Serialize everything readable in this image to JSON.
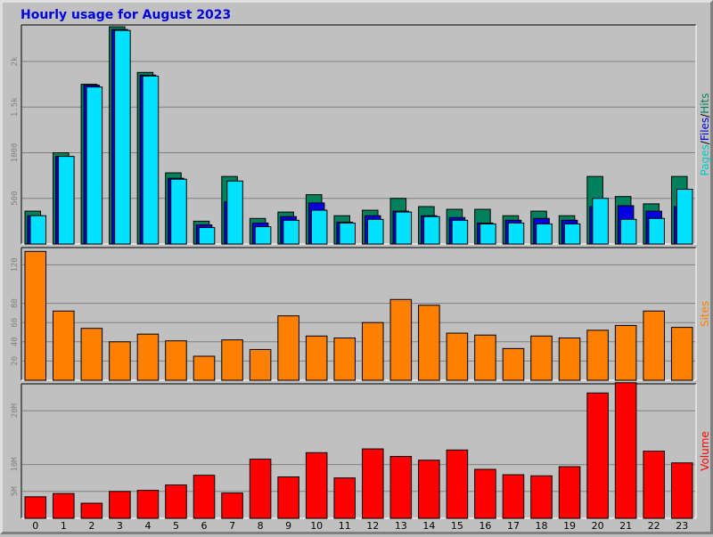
{
  "chart_data": {
    "title": "Hourly usage for August 2023",
    "type": "bar",
    "x": [
      "0",
      "1",
      "2",
      "3",
      "4",
      "5",
      "6",
      "7",
      "8",
      "9",
      "10",
      "11",
      "12",
      "13",
      "14",
      "15",
      "16",
      "17",
      "18",
      "19",
      "20",
      "21",
      "22",
      "23"
    ],
    "panels": [
      {
        "id": "hits",
        "ylim": [
          0,
          2400
        ],
        "yticks": [
          500,
          1000,
          1500,
          2000
        ],
        "ytick_labels": [
          "500",
          "1000",
          "1.5k",
          "2k"
        ],
        "legend": [
          {
            "label": "Pages",
            "color": "#00c8c8"
          },
          {
            "label": "/",
            "color": "#000000"
          },
          {
            "label": "Files",
            "color": "#0000e0"
          },
          {
            "label": "/",
            "color": "#000000"
          },
          {
            "label": "Hits",
            "color": "#00805c"
          }
        ],
        "series": [
          {
            "name": "Hits",
            "color": "#00805c",
            "values": [
              360,
              1000,
              1750,
              2380,
              1880,
              780,
              250,
              740,
              280,
              350,
              540,
              310,
              370,
              500,
              410,
              380,
              380,
              310,
              360,
              310,
              740,
              520,
              440,
              740
            ]
          },
          {
            "name": "Files",
            "color": "#0000e0",
            "values": [
              310,
              960,
              1740,
              2350,
              1850,
              720,
              210,
              460,
              230,
              300,
              450,
              240,
              310,
              360,
              310,
              290,
              230,
              260,
              280,
              260,
              410,
              420,
              360,
              410
            ]
          },
          {
            "name": "Pages",
            "color": "#00e0ff",
            "values": [
              310,
              960,
              1720,
              2340,
              1840,
              710,
              180,
              690,
              190,
              260,
              370,
              230,
              270,
              350,
              300,
              260,
              220,
              230,
              220,
              220,
              500,
              270,
              280,
              600
            ]
          }
        ]
      },
      {
        "id": "sites",
        "ylim": [
          0,
          138
        ],
        "yticks": [
          20,
          40,
          60,
          80,
          120
        ],
        "ytick_labels": [
          "20",
          "40",
          "60",
          "80",
          "120"
        ],
        "legend": [
          {
            "label": "Sites",
            "color": "#ff8000"
          }
        ],
        "series": [
          {
            "name": "Sites",
            "color": "#ff8000",
            "values": [
              134,
              72,
              54,
              40,
              48,
              41,
              25,
              42,
              32,
              67,
              46,
              44,
              60,
              84,
              78,
              49,
              47,
              33,
              46,
              44,
              52,
              57,
              72,
              55
            ]
          }
        ]
      },
      {
        "id": "volume",
        "ylim": [
          0,
          25
        ],
        "yticks": [
          5,
          10,
          20
        ],
        "ytick_labels": [
          "5M",
          "10M",
          "20M"
        ],
        "legend": [
          {
            "label": "Volume",
            "color": "#ff0000"
          }
        ],
        "series": [
          {
            "name": "Volume",
            "color": "#ff0000",
            "values": [
              4,
              4.6,
              2.8,
              5,
              5.2,
              6.2,
              8,
              4.7,
              11,
              7.7,
              12.2,
              7.5,
              12.9,
              11.5,
              10.8,
              12.7,
              9.1,
              8.1,
              7.9,
              9.6,
              23.3,
              25.2,
              12.5,
              10.3
            ]
          }
        ]
      }
    ]
  }
}
